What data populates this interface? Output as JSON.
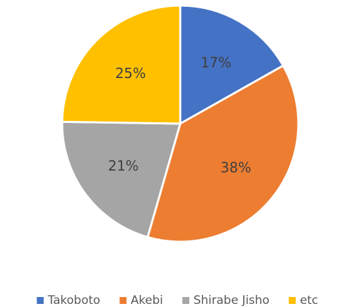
{
  "chart_data": {
    "type": "pie",
    "categories": [
      "Takoboto",
      "Akebi",
      "Shirabe Jisho",
      "etc"
    ],
    "values": [
      17,
      38,
      21,
      25
    ],
    "labels": [
      "17%",
      "38%",
      "21%",
      "25%"
    ],
    "colors": [
      "#4472C4",
      "#ED7D31",
      "#A5A5A5",
      "#FFC000"
    ],
    "legend_position": "bottom",
    "start_angle": "top",
    "direction": "clockwise"
  }
}
